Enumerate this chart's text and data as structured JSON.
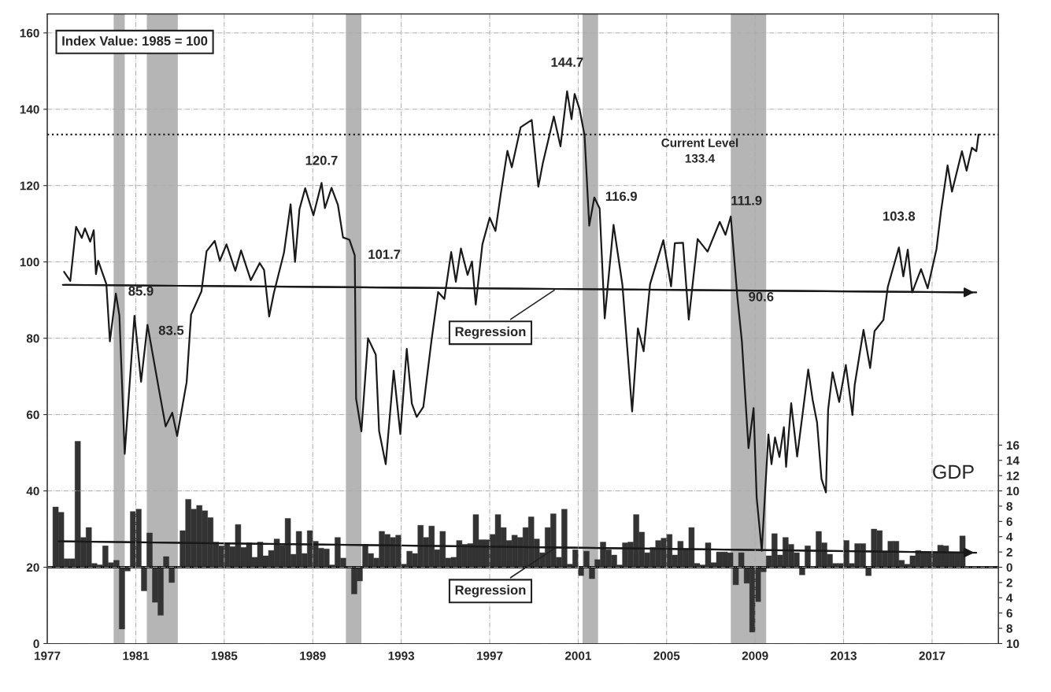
{
  "chart_data": {
    "type": "line",
    "xlim": [
      1977,
      2020
    ],
    "xticks": [
      1977,
      1981,
      1985,
      1989,
      1993,
      1997,
      2001,
      2005,
      2009,
      2013,
      2017
    ],
    "ylim": [
      0,
      165
    ],
    "yticks": [
      0,
      20,
      40,
      60,
      80,
      100,
      120,
      140,
      160
    ],
    "y2lim": [
      -10,
      72.5
    ],
    "y2ticks": [
      {
        "value": -10,
        "label": "10"
      },
      {
        "value": -8,
        "label": "8"
      },
      {
        "value": -6,
        "label": "6"
      },
      {
        "value": -4,
        "label": "4"
      },
      {
        "value": -2,
        "label": "2"
      },
      0,
      2,
      4,
      6,
      8,
      10,
      12,
      14,
      16
    ],
    "grid": true,
    "series": [
      {
        "color": "#1a1a1a",
        "x": [
          1977.76,
          1978.04,
          1978.3,
          1978.56,
          1978.7,
          1978.94,
          1979.1,
          1979.2,
          1979.3,
          1979.67,
          1979.83,
          1980.1,
          1980.26,
          1980.5,
          1980.94,
          1981.24,
          1981.53,
          1982.05,
          1982.35,
          1982.65,
          1982.87,
          1983.3,
          1983.5,
          1983.97,
          1984.2,
          1984.57,
          1984.8,
          1985.1,
          1985.5,
          1985.76,
          1986.2,
          1986.6,
          1986.8,
          1987.03,
          1987.24,
          1987.7,
          1988.0,
          1988.2,
          1988.4,
          1988.66,
          1989.03,
          1989.4,
          1989.55,
          1989.85,
          1990.14,
          1990.37,
          1990.66,
          1990.9,
          1990.96,
          1991.2,
          1991.5,
          1991.85,
          1992.0,
          1992.3,
          1992.66,
          1992.96,
          1993.25,
          1993.48,
          1993.7,
          1994.0,
          1994.37,
          1994.67,
          1994.95,
          1995.26,
          1995.47,
          1995.7,
          1996.0,
          1996.2,
          1996.37,
          1996.67,
          1997.0,
          1997.26,
          1997.5,
          1997.8,
          1998.0,
          1998.4,
          1998.9,
          1999.2,
          1999.4,
          1999.9,
          2000.2,
          2000.5,
          2000.7,
          2000.84,
          2001.06,
          2001.29,
          2001.5,
          2001.73,
          2001.97,
          2002.2,
          2002.6,
          2003.0,
          2003.44,
          2003.7,
          2003.96,
          2004.25,
          2004.85,
          2005.2,
          2005.37,
          2005.74,
          2006.0,
          2006.4,
          2006.85,
          2007.4,
          2007.66,
          2007.9,
          2008.2,
          2008.4,
          2008.56,
          2008.7,
          2008.93,
          2009.07,
          2009.3,
          2009.6,
          2009.74,
          2009.9,
          2010.1,
          2010.3,
          2010.4,
          2010.63,
          2010.9,
          2011.4,
          2011.6,
          2011.8,
          2012.0,
          2012.2,
          2012.3,
          2012.5,
          2012.8,
          2013.1,
          2013.4,
          2013.5,
          2013.9,
          2014.2,
          2014.4,
          2014.8,
          2015.0,
          2015.5,
          2015.7,
          2015.9,
          2016.1,
          2016.5,
          2016.8,
          2017.2,
          2017.4,
          2017.7,
          2017.9,
          2018.35,
          2018.56,
          2018.8,
          2019.0,
          2019.1
        ],
        "values": [
          97.4,
          95,
          109.2,
          106.3,
          108.8,
          105.3,
          108.3,
          96.8,
          100.3,
          94.2,
          79.2,
          91.7,
          85.9,
          49.7,
          85.9,
          68.6,
          83.5,
          66.5,
          56.9,
          60.5,
          54.4,
          68.5,
          86.2,
          92.3,
          102.8,
          105.5,
          100.3,
          104.6,
          97.7,
          103,
          95.2,
          99.7,
          97.9,
          85.7,
          91.8,
          102.4,
          115.1,
          100,
          113.8,
          119.3,
          112.2,
          120.7,
          114.1,
          119.4,
          114.9,
          106.4,
          105.8,
          101.7,
          64.2,
          55.6,
          80,
          75.7,
          55.7,
          47,
          71.5,
          54.9,
          77.2,
          62.9,
          59.4,
          62,
          79.5,
          92.1,
          90.3,
          102.6,
          94.8,
          103.5,
          96.6,
          100.1,
          88.8,
          104.6,
          111.6,
          108.1,
          117.8,
          129.1,
          124.8,
          135.3,
          137.2,
          119.7,
          125.8,
          138.1,
          130.3,
          144.7,
          137.4,
          144,
          140.1,
          133.1,
          109.5,
          116.9,
          114,
          85.2,
          109.7,
          94,
          60.8,
          82.6,
          76.6,
          94.2,
          105.7,
          93.6,
          104.9,
          105,
          84.9,
          106,
          102.7,
          110.5,
          107.1,
          111.9,
          90.6,
          79.3,
          64.2,
          51.2,
          61.7,
          38.2,
          24.3,
          54.8,
          47,
          54,
          48.9,
          56.7,
          46.3,
          63,
          49,
          71.8,
          63.9,
          57.9,
          43.2,
          39.6,
          61.3,
          71.1,
          63.3,
          73,
          59.9,
          67.7,
          82.2,
          72.2,
          81.9,
          84.8,
          93.5,
          103.8,
          96.2,
          103.2,
          92,
          98.1,
          93.1,
          103.4,
          113.1,
          125.3,
          118.4,
          129,
          123.9,
          129.9,
          129,
          133.4
        ]
      },
      {
        "type": "line",
        "color": "#1a1a1a",
        "x": [
          1977.7,
          2019.0
        ],
        "values": [
          94,
          92
        ]
      },
      {
        "type": "bar",
        "axis": "y2",
        "color": "#333333",
        "x": [
          1977.25,
          1977.5,
          1977.75,
          1978,
          1978.25,
          1978.5,
          1978.75,
          1979,
          1979.25,
          1979.5,
          1979.75,
          1980,
          1980.25,
          1980.5,
          1980.75,
          1981,
          1981.25,
          1981.5,
          1981.75,
          1982,
          1982.25,
          1982.5,
          1982.75,
          1983,
          1983.25,
          1983.5,
          1983.75,
          1984,
          1984.25,
          1984.5,
          1984.75,
          1985,
          1985.25,
          1985.5,
          1985.75,
          1986,
          1986.25,
          1986.5,
          1986.75,
          1987,
          1987.25,
          1987.5,
          1987.75,
          1988,
          1988.25,
          1988.5,
          1988.75,
          1989,
          1989.25,
          1989.5,
          1989.75,
          1990,
          1990.25,
          1990.5,
          1990.75,
          1991,
          1991.25,
          1991.5,
          1991.75,
          1992,
          1992.25,
          1992.5,
          1992.75,
          1993,
          1993.25,
          1993.5,
          1993.75,
          1994,
          1994.25,
          1994.5,
          1994.75,
          1995,
          1995.25,
          1995.5,
          1995.75,
          1996,
          1996.25,
          1996.5,
          1996.75,
          1997,
          1997.25,
          1997.5,
          1997.75,
          1998,
          1998.25,
          1998.5,
          1998.75,
          1999,
          1999.25,
          1999.5,
          1999.75,
          2000,
          2000.25,
          2000.5,
          2000.75,
          2001,
          2001.25,
          2001.5,
          2001.75,
          2002,
          2002.25,
          2002.5,
          2002.75,
          2003,
          2003.25,
          2003.5,
          2003.75,
          2004,
          2004.25,
          2004.5,
          2004.75,
          2005,
          2005.25,
          2005.5,
          2005.75,
          2006,
          2006.25,
          2006.5,
          2006.75,
          2007,
          2007.25,
          2007.5,
          2007.75,
          2008,
          2008.25,
          2008.5,
          2008.75,
          2009,
          2009.25,
          2009.5,
          2009.75,
          2010,
          2010.25,
          2010.5,
          2010.75,
          2011,
          2011.25,
          2011.5,
          2011.75,
          2012,
          2012.25,
          2012.5,
          2012.75,
          2013,
          2013.25,
          2013.5,
          2013.75,
          2014,
          2014.25,
          2014.5,
          2014.75,
          2015,
          2015.25,
          2015.5,
          2015.75,
          2016,
          2016.25,
          2016.5,
          2016.75,
          2017,
          2017.25,
          2017.5,
          2017.75,
          2018,
          2018.25
        ],
        "values": [
          7.9,
          7.2,
          1.1,
          1.1,
          16.5,
          3.9,
          5.2,
          0.5,
          0.3,
          2.8,
          0.6,
          0.9,
          -8.1,
          -0.5,
          7.3,
          7.6,
          -3.1,
          4.5,
          -4.6,
          -6.3,
          1.4,
          -2.0,
          null,
          4.8,
          8.9,
          7.6,
          8.1,
          7.4,
          6.5,
          3.3,
          2.8,
          3.2,
          2.7,
          5.6,
          2.6,
          3.2,
          1.3,
          3.3,
          1.5,
          2.2,
          3.7,
          2.9,
          6.4,
          1.7,
          4.7,
          1.8,
          4.8,
          3.4,
          2.5,
          2.4,
          0.3,
          3.9,
          1.2,
          0,
          -3.5,
          -1.8,
          3.0,
          1.8,
          1.2,
          4.7,
          4.3,
          3.9,
          4.2,
          0.4,
          2.1,
          1.8,
          5.5,
          3.9,
          5.4,
          2.3,
          4.7,
          1.2,
          1.3,
          3.5,
          3.0,
          3.1,
          6.9,
          3.6,
          3.6,
          4.3,
          6.9,
          5.2,
          3.5,
          4.2,
          3.9,
          5.2,
          6.6,
          3.7,
          1.9,
          5.2,
          7.0,
          1.3,
          7.6,
          0.4,
          2.3,
          -1.1,
          2.1,
          -1.5,
          1.0,
          3.3,
          2.3,
          1.6,
          0.3,
          3.2,
          3.3,
          6.9,
          4.6,
          1.9,
          2.6,
          3.5,
          3.8,
          4.3,
          1.6,
          3.4,
          2.4,
          5.2,
          0.5,
          0.3,
          3.2,
          0.6,
          2.0,
          2.0,
          1.9,
          -2.3,
          1.9,
          -2.1,
          -8.5,
          -4.5,
          -0.6,
          1.5,
          4.4,
          1.6,
          3.9,
          3.0,
          1.9,
          -1.0,
          2.8,
          null,
          4.7,
          3.2,
          1.7,
          0.5,
          0.5,
          3.5,
          0.5,
          3.1,
          3.1,
          -1.1,
          5.0,
          4.8,
          2.0,
          3.4,
          3.4,
          0.9,
          0.4,
          1.5,
          2.2,
          2.0,
          1.9,
          1.9,
          2.9,
          2.8,
          2.0,
          2.0,
          4.1
        ]
      },
      {
        "type": "line",
        "axis": "y2",
        "color": "#1a1a1a",
        "x": [
          1977.5,
          2019.0
        ],
        "values": [
          3.4,
          1.9
        ]
      }
    ],
    "ref_lines": [
      {
        "axis": "y",
        "value": 133.4,
        "label": "Current Level\n133.4",
        "line_style": "dotted",
        "color": "#222222"
      },
      {
        "axis": "y2",
        "value": 0,
        "color": "#111111"
      }
    ],
    "bands": [
      {
        "axis": "x",
        "from": 1980.0,
        "to": 1980.5,
        "color": "#b5b5b5"
      },
      {
        "axis": "x",
        "from": 1981.5,
        "to": 1982.9,
        "color": "#b5b5b5"
      },
      {
        "axis": "x",
        "from": 1990.5,
        "to": 1991.2,
        "color": "#b5b5b5"
      },
      {
        "axis": "x",
        "from": 2001.2,
        "to": 2001.9,
        "color": "#b5b5b5"
      },
      {
        "axis": "x",
        "from": 2007.9,
        "to": 2009.5,
        "color": "#b5b5b5"
      }
    ],
    "annotations": [
      "Index Value: 1985 = 100",
      {
        "text": "85.9",
        "x": 1980.26,
        "y": 85.9
      },
      {
        "text": "83.5",
        "x": 1981.53,
        "y": 83.5
      },
      {
        "text": "120.7",
        "x": 1989.4,
        "y": 120.7
      },
      {
        "text": "101.7",
        "x": 1990.9,
        "y": 101.7
      },
      {
        "text": "144.7",
        "x": 2000.5,
        "y": 144.7
      },
      {
        "text": "116.9",
        "x": 2001.73,
        "y": 116.9
      },
      {
        "text": "111.9",
        "x": 2007.9,
        "y": 111.9
      },
      {
        "text": "90.6",
        "x": 2008.2,
        "y": 90.6
      },
      {
        "text": "103.8",
        "x": 2015.5,
        "y": 103.8
      },
      {
        "text": "Regression",
        "x": 2000,
        "y": 92.9
      },
      {
        "text": "Regression",
        "x": 2000,
        "y": 25.2
      },
      "GDP"
    ]
  }
}
